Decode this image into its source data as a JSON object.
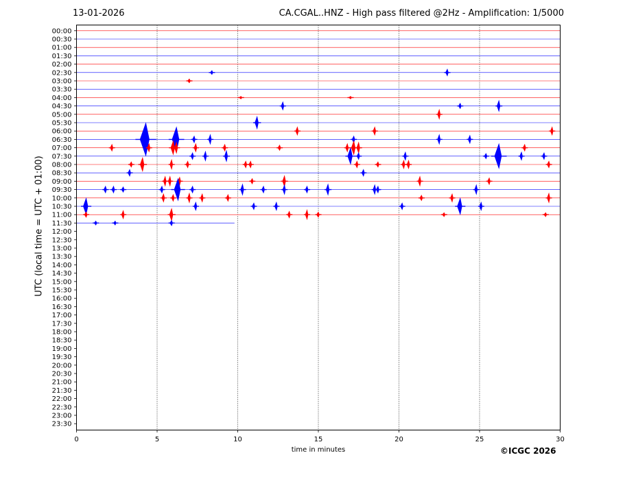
{
  "header": {
    "date": "13-01-2026",
    "title": "CA.CGAL..HNZ - High pass filtered @2Hz - Amplification: 1/5000"
  },
  "footer": {
    "copyright": "©ICGC 2026"
  },
  "chart_data": {
    "type": "line",
    "title": "CA.CGAL..HNZ - High pass filtered @2Hz - Amplification: 1/5000",
    "xlabel": "time in minutes",
    "ylabel": "UTC (local time = UTC + 01:00)",
    "xlim": [
      0,
      30
    ],
    "x_ticks": [
      "0",
      "5",
      "10",
      "15",
      "20",
      "25",
      "30"
    ],
    "x_tick_values": [
      0,
      5,
      10,
      15,
      20,
      25,
      30
    ],
    "y_tick_labels": [
      "00:00",
      "00:30",
      "01:00",
      "01:30",
      "02:00",
      "02:30",
      "03:00",
      "03:30",
      "04:00",
      "04:30",
      "05:00",
      "05:30",
      "06:00",
      "06:30",
      "07:00",
      "07:30",
      "08:00",
      "08:30",
      "09:00",
      "09:30",
      "10:00",
      "10:30",
      "11:00",
      "11:30",
      "12:00",
      "12:30",
      "13:00",
      "13:30",
      "14:00",
      "14:30",
      "15:00",
      "15:30",
      "16:00",
      "16:30",
      "17:00",
      "17:30",
      "18:00",
      "18:30",
      "19:00",
      "19:30",
      "20:00",
      "20:30",
      "21:00",
      "21:30",
      "22:00",
      "22:30",
      "23:00",
      "23:30"
    ],
    "grid": "vertical dotted lines at x ticks",
    "colors": {
      "even_rows": "#ff0000",
      "odd_rows": "#0000ff"
    },
    "last_trace_row": 23,
    "last_trace_end_minutes": 9.8,
    "events": [
      {
        "row": 5,
        "t": 8.4,
        "a": 3
      },
      {
        "row": 5,
        "t": 23.0,
        "a": 5
      },
      {
        "row": 6,
        "t": 7.0,
        "a": 3
      },
      {
        "row": 8,
        "t": 10.2,
        "a": 2
      },
      {
        "row": 8,
        "t": 17.0,
        "a": 2
      },
      {
        "row": 9,
        "t": 12.8,
        "a": 6
      },
      {
        "row": 9,
        "t": 23.8,
        "a": 4
      },
      {
        "row": 9,
        "t": 26.2,
        "a": 8
      },
      {
        "row": 10,
        "t": 22.5,
        "a": 7
      },
      {
        "row": 11,
        "t": 11.2,
        "a": 9
      },
      {
        "row": 12,
        "t": 13.7,
        "a": 6
      },
      {
        "row": 12,
        "t": 18.5,
        "a": 6
      },
      {
        "row": 12,
        "t": 29.5,
        "a": 6
      },
      {
        "row": 13,
        "t": 4.3,
        "a": 24
      },
      {
        "row": 13,
        "t": 6.2,
        "a": 18
      },
      {
        "row": 13,
        "t": 7.3,
        "a": 5
      },
      {
        "row": 13,
        "t": 8.3,
        "a": 7
      },
      {
        "row": 13,
        "t": 17.2,
        "a": 5
      },
      {
        "row": 13,
        "t": 22.5,
        "a": 7
      },
      {
        "row": 13,
        "t": 24.4,
        "a": 6
      },
      {
        "row": 14,
        "t": 2.2,
        "a": 5
      },
      {
        "row": 14,
        "t": 4.5,
        "a": 6
      },
      {
        "row": 14,
        "t": 6.0,
        "a": 10
      },
      {
        "row": 14,
        "t": 6.2,
        "a": 8
      },
      {
        "row": 14,
        "t": 7.4,
        "a": 6
      },
      {
        "row": 14,
        "t": 9.2,
        "a": 5
      },
      {
        "row": 14,
        "t": 12.6,
        "a": 4
      },
      {
        "row": 14,
        "t": 16.8,
        "a": 6
      },
      {
        "row": 14,
        "t": 17.2,
        "a": 10
      },
      {
        "row": 14,
        "t": 17.5,
        "a": 8
      },
      {
        "row": 14,
        "t": 27.8,
        "a": 5
      },
      {
        "row": 15,
        "t": 7.2,
        "a": 5
      },
      {
        "row": 15,
        "t": 8.0,
        "a": 7
      },
      {
        "row": 15,
        "t": 9.3,
        "a": 8
      },
      {
        "row": 15,
        "t": 17.0,
        "a": 12
      },
      {
        "row": 15,
        "t": 17.5,
        "a": 5
      },
      {
        "row": 15,
        "t": 20.4,
        "a": 6
      },
      {
        "row": 15,
        "t": 25.4,
        "a": 4
      },
      {
        "row": 15,
        "t": 26.2,
        "a": 18
      },
      {
        "row": 15,
        "t": 27.6,
        "a": 6
      },
      {
        "row": 15,
        "t": 29.0,
        "a": 5
      },
      {
        "row": 16,
        "t": 3.4,
        "a": 4
      },
      {
        "row": 16,
        "t": 4.1,
        "a": 10
      },
      {
        "row": 16,
        "t": 5.9,
        "a": 7
      },
      {
        "row": 16,
        "t": 6.9,
        "a": 5
      },
      {
        "row": 16,
        "t": 10.5,
        "a": 5
      },
      {
        "row": 16,
        "t": 10.8,
        "a": 5
      },
      {
        "row": 16,
        "t": 17.4,
        "a": 5
      },
      {
        "row": 16,
        "t": 18.7,
        "a": 4
      },
      {
        "row": 16,
        "t": 20.3,
        "a": 6
      },
      {
        "row": 16,
        "t": 20.6,
        "a": 6
      },
      {
        "row": 16,
        "t": 29.3,
        "a": 5
      },
      {
        "row": 17,
        "t": 3.3,
        "a": 5
      },
      {
        "row": 17,
        "t": 17.8,
        "a": 5
      },
      {
        "row": 18,
        "t": 5.5,
        "a": 7
      },
      {
        "row": 18,
        "t": 5.8,
        "a": 7
      },
      {
        "row": 18,
        "t": 6.4,
        "a": 6
      },
      {
        "row": 18,
        "t": 10.9,
        "a": 4
      },
      {
        "row": 18,
        "t": 12.9,
        "a": 8
      },
      {
        "row": 18,
        "t": 21.3,
        "a": 7
      },
      {
        "row": 18,
        "t": 25.6,
        "a": 5
      },
      {
        "row": 19,
        "t": 1.8,
        "a": 5
      },
      {
        "row": 19,
        "t": 2.3,
        "a": 5
      },
      {
        "row": 19,
        "t": 2.9,
        "a": 4
      },
      {
        "row": 19,
        "t": 5.3,
        "a": 5
      },
      {
        "row": 19,
        "t": 6.3,
        "a": 16
      },
      {
        "row": 19,
        "t": 7.2,
        "a": 5
      },
      {
        "row": 19,
        "t": 10.3,
        "a": 8
      },
      {
        "row": 19,
        "t": 11.6,
        "a": 5
      },
      {
        "row": 19,
        "t": 12.9,
        "a": 7
      },
      {
        "row": 19,
        "t": 14.3,
        "a": 5
      },
      {
        "row": 19,
        "t": 15.6,
        "a": 8
      },
      {
        "row": 19,
        "t": 18.5,
        "a": 7
      },
      {
        "row": 19,
        "t": 18.7,
        "a": 5
      },
      {
        "row": 19,
        "t": 24.8,
        "a": 7
      },
      {
        "row": 20,
        "t": 5.4,
        "a": 6
      },
      {
        "row": 20,
        "t": 6.0,
        "a": 5
      },
      {
        "row": 20,
        "t": 7.0,
        "a": 7
      },
      {
        "row": 20,
        "t": 7.8,
        "a": 6
      },
      {
        "row": 20,
        "t": 9.4,
        "a": 5
      },
      {
        "row": 20,
        "t": 21.4,
        "a": 4
      },
      {
        "row": 20,
        "t": 23.3,
        "a": 6
      },
      {
        "row": 20,
        "t": 29.3,
        "a": 7
      },
      {
        "row": 21,
        "t": 0.6,
        "a": 12
      },
      {
        "row": 21,
        "t": 7.4,
        "a": 6
      },
      {
        "row": 21,
        "t": 11.0,
        "a": 5
      },
      {
        "row": 21,
        "t": 12.4,
        "a": 6
      },
      {
        "row": 21,
        "t": 20.2,
        "a": 5
      },
      {
        "row": 21,
        "t": 23.8,
        "a": 12
      },
      {
        "row": 21,
        "t": 25.1,
        "a": 6
      },
      {
        "row": 22,
        "t": 0.6,
        "a": 4
      },
      {
        "row": 22,
        "t": 2.9,
        "a": 6
      },
      {
        "row": 22,
        "t": 5.9,
        "a": 9
      },
      {
        "row": 22,
        "t": 13.2,
        "a": 5
      },
      {
        "row": 22,
        "t": 14.3,
        "a": 7
      },
      {
        "row": 22,
        "t": 15.0,
        "a": 4
      },
      {
        "row": 22,
        "t": 22.8,
        "a": 3
      },
      {
        "row": 22,
        "t": 29.1,
        "a": 3
      },
      {
        "row": 23,
        "t": 1.2,
        "a": 3
      },
      {
        "row": 23,
        "t": 2.4,
        "a": 3
      },
      {
        "row": 23,
        "t": 5.9,
        "a": 4
      }
    ]
  }
}
